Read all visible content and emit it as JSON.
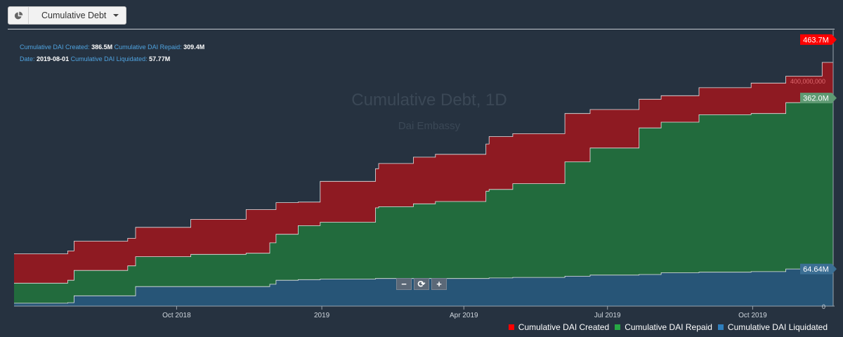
{
  "dropdown": {
    "label": "Cumulative Debt",
    "icon": "pie-chart-icon"
  },
  "info": {
    "row1": [
      {
        "key": "Cumulative DAI Created:",
        "value": "386.5M"
      },
      {
        "key": "Cumulative DAI Repaid:",
        "value": "309.4M"
      }
    ],
    "row2": [
      {
        "key": "Date:",
        "value": "2019-08-01"
      },
      {
        "key": "Cumulative DAI Liquidated:",
        "value": "57.77M"
      }
    ]
  },
  "zoom": {
    "minus": "−",
    "reset": "⟳",
    "plus": "+"
  },
  "colors": {
    "background": "#263240",
    "created": "#8e1a22",
    "repaid": "#226b3d",
    "liquidated": "#275577",
    "created_label": "#ff0000",
    "repaid_label": "#5f9a73",
    "liquidated_label": "#3c6f94"
  },
  "chart_data": {
    "type": "area",
    "title": "Cumulative Debt, 1D",
    "subtitle": "Dai Embassy",
    "x_ticks": [
      "Oct 2018",
      "2019",
      "Apr 2019",
      "Jul 2019",
      "Oct 2019"
    ],
    "y_tick_labels": [
      "400,000,000",
      "0"
    ],
    "ylim": [
      0,
      480000000
    ],
    "grid": false,
    "legend_position": "bottom-right",
    "last_value_labels": [
      "463.7M",
      "362.0M",
      "64.64M"
    ],
    "series": [
      {
        "name": "Cumulative DAI Created",
        "color": "#8e1a22",
        "x": [
          "2018-06-20",
          "2018-07-24",
          "2018-07-28",
          "2018-08-31",
          "2018-09-05",
          "2018-10-10",
          "2018-11-14",
          "2018-11-29",
          "2018-12-03",
          "2018-12-17",
          "2018-12-31",
          "2019-02-04",
          "2019-02-06",
          "2019-02-28",
          "2019-03-14",
          "2019-04-15",
          "2019-04-17",
          "2019-05-02",
          "2019-06-04",
          "2019-06-20",
          "2019-07-21",
          "2019-08-04",
          "2019-08-28",
          "2019-09-30",
          "2019-10-22",
          "2019-11-14",
          "2019-11-21"
        ],
        "y": [
          91000000,
          96000000,
          113000000,
          118000000,
          137000000,
          151000000,
          168000000,
          168000000,
          180000000,
          181000000,
          217000000,
          239000000,
          248000000,
          259000000,
          264000000,
          282000000,
          295000000,
          300000000,
          335000000,
          342000000,
          360000000,
          366000000,
          380000000,
          388000000,
          400000000,
          424000000,
          463700000
        ]
      },
      {
        "name": "Cumulative DAI Repaid",
        "color": "#226b3d",
        "x": [
          "2018-06-20",
          "2018-07-24",
          "2018-07-28",
          "2018-08-31",
          "2018-09-05",
          "2018-10-10",
          "2018-11-14",
          "2018-11-29",
          "2018-12-03",
          "2018-12-17",
          "2018-12-31",
          "2019-02-04",
          "2019-02-06",
          "2019-02-28",
          "2019-03-14",
          "2019-04-15",
          "2019-04-17",
          "2019-05-02",
          "2019-06-04",
          "2019-06-20",
          "2019-07-21",
          "2019-08-04",
          "2019-08-28",
          "2019-09-30",
          "2019-10-22",
          "2019-11-14",
          "2019-11-21"
        ],
        "y": [
          40000000,
          45000000,
          62000000,
          70000000,
          86000000,
          90000000,
          92000000,
          110000000,
          125000000,
          140000000,
          146000000,
          171000000,
          173000000,
          178000000,
          182000000,
          200000000,
          203000000,
          213000000,
          251000000,
          275000000,
          310000000,
          320000000,
          333000000,
          335000000,
          354000000,
          356000000,
          362000000
        ]
      },
      {
        "name": "Cumulative DAI Liquidated",
        "color": "#275577",
        "x": [
          "2018-06-20",
          "2018-07-24",
          "2018-07-28",
          "2018-08-31",
          "2018-09-05",
          "2018-10-10",
          "2018-11-14",
          "2018-11-29",
          "2018-12-03",
          "2018-12-17",
          "2018-12-31",
          "2019-02-04",
          "2019-02-06",
          "2019-02-28",
          "2019-03-14",
          "2019-04-15",
          "2019-04-17",
          "2019-05-02",
          "2019-06-04",
          "2019-06-20",
          "2019-07-21",
          "2019-08-04",
          "2019-08-28",
          "2019-09-30",
          "2019-10-22",
          "2019-11-14",
          "2019-11-21"
        ],
        "y": [
          5000000,
          6000000,
          18000000,
          18000000,
          34000000,
          34000000,
          34000000,
          38000000,
          45000000,
          46000000,
          47000000,
          48000000,
          48000000,
          48000000,
          48000000,
          48000000,
          49000000,
          50000000,
          52000000,
          54000000,
          55000000,
          58000000,
          59000000,
          60000000,
          64640000,
          64640000,
          64640000
        ]
      }
    ]
  }
}
